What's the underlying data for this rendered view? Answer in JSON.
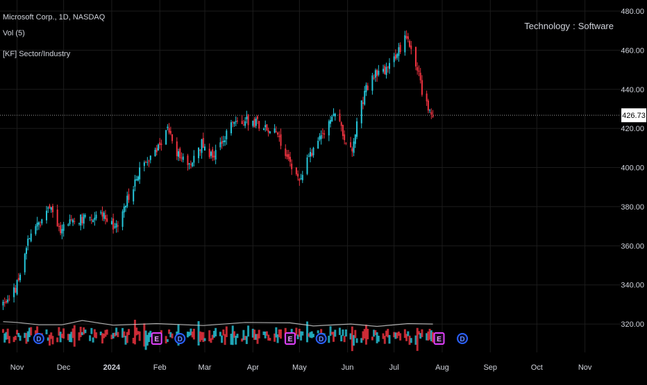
{
  "legend": {
    "title": "Microsoft Corp., 1D, NASDAQ",
    "volume": "Vol (5)",
    "indicator": "[KF] Sector/Industry"
  },
  "sector": {
    "sector": "Technology",
    "separator": ":",
    "industry": "Software"
  },
  "colors": {
    "up": "#26c6da",
    "down": "#ef3340",
    "background": "#000000",
    "grid": "#1c1c1c",
    "dividend_marker": "#2962ff",
    "earnings_marker": "#e040fb",
    "volume_ma": "#cccccc"
  },
  "markers": [
    {
      "label": "D",
      "type": "dividend",
      "date": "2023-11-15"
    },
    {
      "label": "D",
      "type": "dividend",
      "date": "2024-02-14"
    },
    {
      "label": "D",
      "type": "dividend",
      "date": "2024-05-15"
    },
    {
      "label": "D",
      "type": "dividend",
      "date": "2024-08-14"
    },
    {
      "label": "E",
      "type": "earnings",
      "date": "2024-01-30"
    },
    {
      "label": "E",
      "type": "earnings",
      "date": "2024-04-25"
    },
    {
      "label": "E",
      "type": "earnings",
      "date": "2024-07-30"
    }
  ],
  "chart_data": {
    "type": "candlestick",
    "title": "Microsoft Corp., 1D, NASDAQ",
    "last_price": "426.73",
    "price_ticks": [
      "320.00",
      "340.00",
      "360.00",
      "380.00",
      "400.00",
      "420.00",
      "440.00",
      "460.00",
      "480.00"
    ],
    "ylim": [
      314,
      480
    ],
    "time_ticks": [
      "Nov",
      "Dec",
      "2024",
      "Feb",
      "Mar",
      "Apr",
      "May",
      "Jun",
      "Jul",
      "Aug",
      "Sep",
      "Oct",
      "Nov"
    ],
    "x_range": [
      "2023-10-21",
      "2024-11-24"
    ],
    "grid": true,
    "close_path": [
      [
        "2023-10-23",
        331
      ],
      [
        "2023-10-31",
        338
      ],
      [
        "2023-11-07",
        360
      ],
      [
        "2023-11-14",
        370
      ],
      [
        "2023-11-20",
        378
      ],
      [
        "2023-11-24",
        378
      ],
      [
        "2023-11-28",
        368
      ],
      [
        "2023-12-05",
        372
      ],
      [
        "2023-12-12",
        374
      ],
      [
        "2023-12-19",
        373
      ],
      [
        "2023-12-28",
        376
      ],
      [
        "2024-01-03",
        368
      ],
      [
        "2024-01-10",
        382
      ],
      [
        "2024-01-17",
        395
      ],
      [
        "2024-01-24",
        404
      ],
      [
        "2024-01-31",
        410
      ],
      [
        "2024-02-06",
        420
      ],
      [
        "2024-02-13",
        406
      ],
      [
        "2024-02-21",
        402
      ],
      [
        "2024-02-28",
        412
      ],
      [
        "2024-03-05",
        406
      ],
      [
        "2024-03-12",
        412
      ],
      [
        "2024-03-19",
        425
      ],
      [
        "2024-03-26",
        424
      ],
      [
        "2024-04-02",
        423
      ],
      [
        "2024-04-09",
        421
      ],
      [
        "2024-04-16",
        418
      ],
      [
        "2024-04-22",
        405
      ],
      [
        "2024-04-30",
        393
      ],
      [
        "2024-05-07",
        406
      ],
      [
        "2024-05-14",
        414
      ],
      [
        "2024-05-21",
        423
      ],
      [
        "2024-05-24",
        430
      ],
      [
        "2024-05-30",
        415
      ],
      [
        "2024-06-04",
        410
      ],
      [
        "2024-06-07",
        424
      ],
      [
        "2024-06-13",
        440
      ],
      [
        "2024-06-18",
        448
      ],
      [
        "2024-06-25",
        450
      ],
      [
        "2024-07-02",
        457
      ],
      [
        "2024-07-08",
        466
      ],
      [
        "2024-07-11",
        462
      ],
      [
        "2024-07-16",
        452
      ],
      [
        "2024-07-19",
        438
      ],
      [
        "2024-07-24",
        429
      ],
      [
        "2024-07-26",
        426.73
      ]
    ],
    "volume_ma_path": [
      [
        "2023-10-23",
        321.2
      ],
      [
        "2023-11-01",
        320.8
      ],
      [
        "2023-11-15",
        319.6
      ],
      [
        "2023-11-30",
        319.6
      ],
      [
        "2023-12-13",
        321.8
      ],
      [
        "2024-01-02",
        319.4
      ],
      [
        "2024-01-30",
        320.2
      ],
      [
        "2024-02-29",
        319.2
      ],
      [
        "2024-03-27",
        320.8
      ],
      [
        "2024-04-25",
        320.6
      ],
      [
        "2024-05-10",
        319.0
      ],
      [
        "2024-06-03",
        320.0
      ],
      [
        "2024-06-20",
        318.8
      ],
      [
        "2024-07-10",
        320.2
      ],
      [
        "2024-07-26",
        320.0
      ]
    ]
  }
}
